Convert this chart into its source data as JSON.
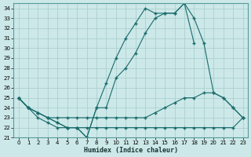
{
  "xlabel": "Humidex (Indice chaleur)",
  "xlim": [
    -0.5,
    23.5
  ],
  "ylim": [
    21,
    34.5
  ],
  "yticks": [
    21,
    22,
    23,
    24,
    25,
    26,
    27,
    28,
    29,
    30,
    31,
    32,
    33,
    34
  ],
  "xticks": [
    0,
    1,
    2,
    3,
    4,
    5,
    6,
    7,
    8,
    9,
    10,
    11,
    12,
    13,
    14,
    15,
    16,
    17,
    18,
    19,
    20,
    21,
    22,
    23
  ],
  "bg_color": "#cce8e8",
  "line_color": "#1a6b6b",
  "grid_color": "#a8cccc",
  "series": {
    "line1_x": [
      0,
      1,
      2,
      3,
      4,
      5,
      6,
      7,
      8,
      9,
      10,
      11,
      12,
      13,
      14,
      15,
      16,
      17,
      18
    ],
    "line1_y": [
      25,
      24,
      23.5,
      23,
      22.5,
      22,
      22,
      21,
      24,
      26.5,
      29,
      31,
      32.5,
      34,
      33.5,
      33.5,
      33.5,
      34.5,
      30.5
    ],
    "line2_x": [
      0,
      1,
      2,
      3,
      4,
      5,
      6,
      7,
      8,
      9,
      10,
      11,
      12,
      13,
      14,
      15,
      16,
      17,
      18,
      19,
      20,
      21,
      22,
      23
    ],
    "line2_y": [
      25,
      24,
      23.5,
      23,
      22.5,
      22,
      22,
      21,
      24,
      24,
      27,
      28,
      29.5,
      31.5,
      33,
      33.5,
      33.5,
      34.5,
      33,
      30.5,
      25.5,
      25,
      24,
      23
    ],
    "line3_x": [
      0,
      1,
      2,
      3,
      4,
      5,
      6,
      7,
      8,
      9,
      10,
      11,
      12,
      13,
      14,
      15,
      16,
      17,
      18,
      19,
      20,
      21,
      22,
      23
    ],
    "line3_y": [
      25,
      24,
      23.5,
      23,
      23,
      23,
      23,
      23,
      23,
      23,
      23,
      23,
      23,
      23,
      23.5,
      24,
      24.5,
      25,
      25,
      25.5,
      25.5,
      25,
      24,
      23
    ],
    "line4_x": [
      0,
      1,
      2,
      3,
      4,
      5,
      6,
      7,
      8,
      9,
      10,
      11,
      12,
      13,
      14,
      15,
      16,
      17,
      18,
      19,
      20,
      21,
      22,
      23
    ],
    "line4_y": [
      25,
      24,
      23,
      22.5,
      22,
      22,
      22,
      22,
      22,
      22,
      22,
      22,
      22,
      22,
      22,
      22,
      22,
      22,
      22,
      22,
      22,
      22,
      22,
      23
    ]
  }
}
